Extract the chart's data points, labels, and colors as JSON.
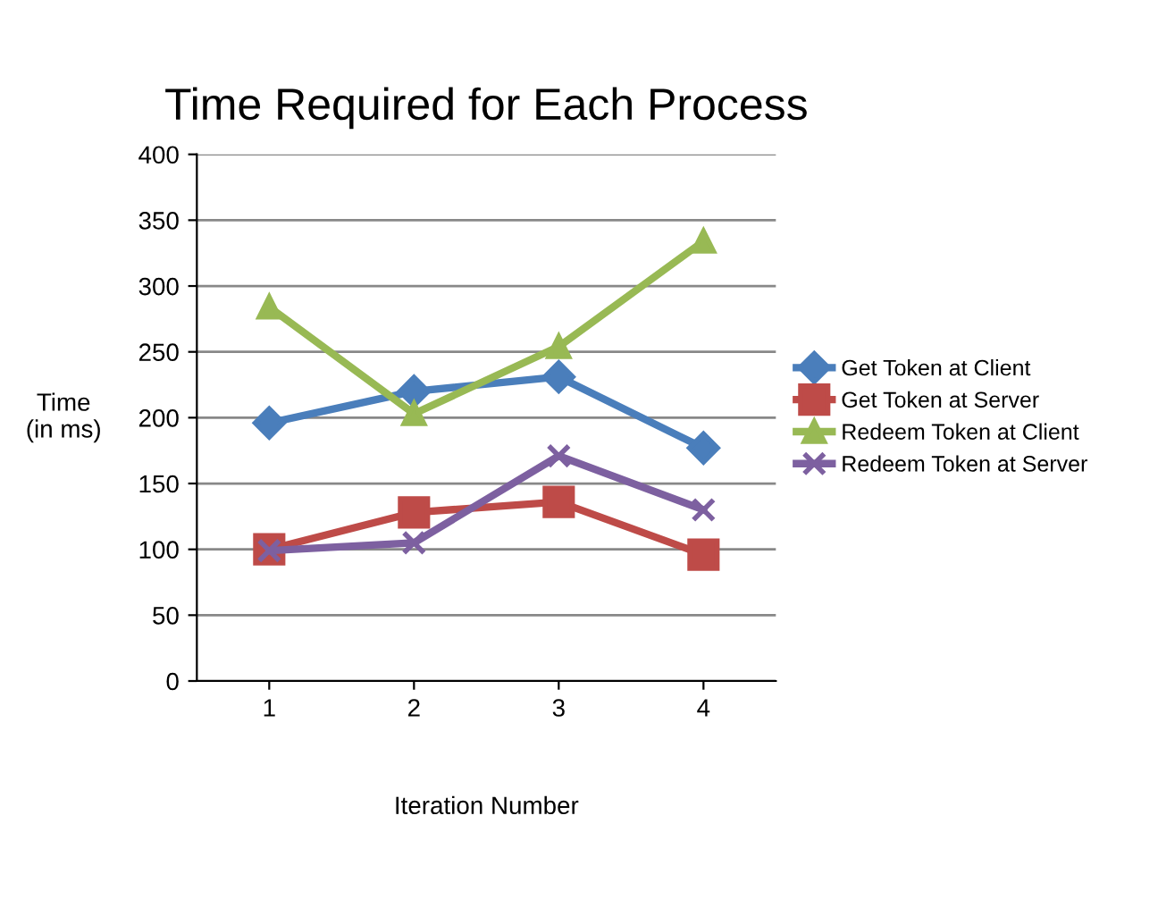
{
  "chart_data": {
    "type": "line",
    "title": "Time Required for Each Process",
    "xlabel": "Iteration Number",
    "ylabel": "Time\n(in ms)",
    "categories": [
      "1",
      "2",
      "3",
      "4"
    ],
    "series": [
      {
        "name": "Get Token at Client",
        "color": "#4a7ebb",
        "marker": "diamond",
        "values": [
          196,
          220,
          231,
          177
        ]
      },
      {
        "name": "Get Token at Server",
        "color": "#be4b48",
        "marker": "square",
        "values": [
          100,
          128,
          136,
          96
        ]
      },
      {
        "name": "Redeem Token at Client",
        "color": "#98b954",
        "marker": "triangle",
        "values": [
          284,
          203,
          254,
          334
        ]
      },
      {
        "name": "Redeem Token at Server",
        "color": "#7d60a0",
        "marker": "cross",
        "values": [
          99,
          105,
          171,
          130
        ]
      }
    ],
    "ylim": [
      0,
      400
    ],
    "yticks": [
      0,
      50,
      100,
      150,
      200,
      250,
      300,
      350,
      400
    ],
    "grid": "y",
    "legend": "right",
    "line_style": "solid"
  }
}
